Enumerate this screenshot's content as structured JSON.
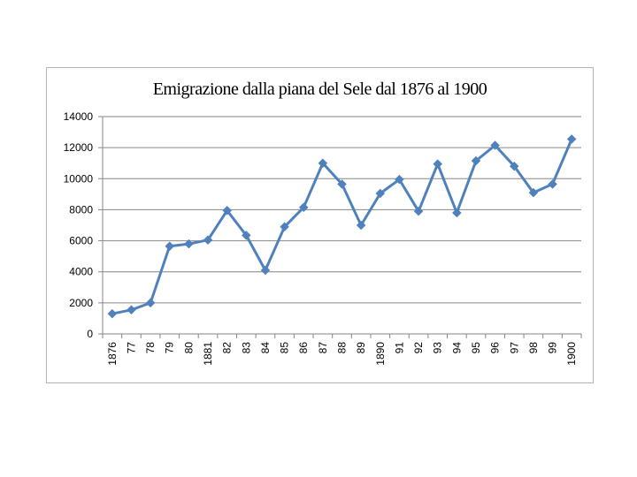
{
  "chart_data": {
    "type": "line",
    "title": "Emigrazione dalla piana del Sele dal 1876 al 1900",
    "xlabel": "",
    "ylabel": "",
    "categories": [
      "1876",
      "77",
      "78",
      "79",
      "80",
      "1881",
      "82",
      "83",
      "84",
      "85",
      "86",
      "87",
      "88",
      "89",
      "1890",
      "91",
      "92",
      "93",
      "94",
      "95",
      "96",
      "97",
      "98",
      "99",
      "1900"
    ],
    "series": [
      {
        "name": "Emigrazione",
        "color": "#4f81bd",
        "values": [
          1300,
          1550,
          2000,
          5650,
          5800,
          6050,
          7950,
          6350,
          4100,
          6900,
          8150,
          11000,
          9650,
          7000,
          9050,
          9950,
          7900,
          10950,
          7800,
          11150,
          12150,
          10800,
          9100,
          9650,
          12550
        ]
      }
    ],
    "ylim": [
      0,
      14000
    ],
    "yticks": [
      0,
      2000,
      4000,
      6000,
      8000,
      10000,
      12000,
      14000
    ],
    "grid": true,
    "legend": "none"
  }
}
